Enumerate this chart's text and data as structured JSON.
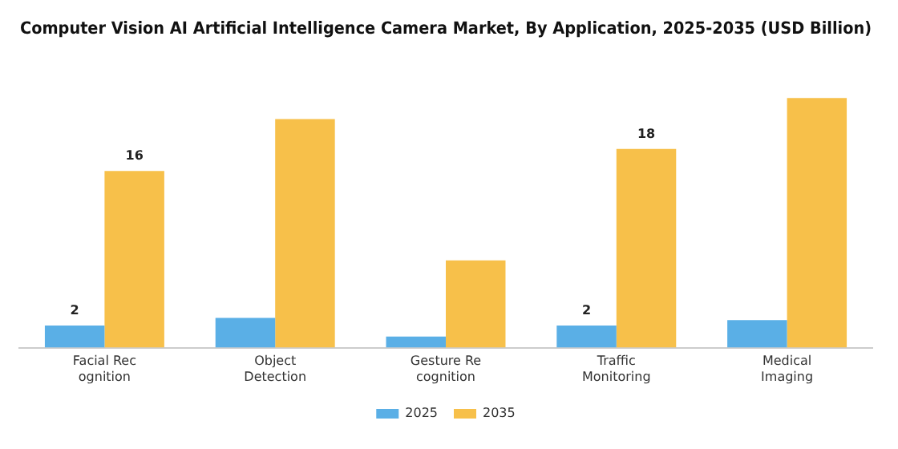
{
  "chart_data": {
    "type": "bar",
    "title": "Computer Vision AI Artificial Intelligence Camera Market, By Application, 2025-2035 (USD Billion)",
    "categories": [
      "Facial Rec\nognition",
      "Object\nDetection",
      "Gesture Re\ncognition",
      "Traffic\nMonitoring",
      "Medical\nImaging"
    ],
    "series": [
      {
        "name": "2025",
        "color": "#5aafe6",
        "values": [
          2,
          2.7,
          1,
          2,
          2.5
        ],
        "value_labels": [
          "2",
          null,
          null,
          "2",
          null
        ]
      },
      {
        "name": "2035",
        "color": "#f7c04a",
        "values": [
          16,
          20.7,
          7.9,
          18,
          22.6
        ],
        "value_labels": [
          "16",
          null,
          null,
          "18",
          null
        ]
      }
    ],
    "legend": "bottom",
    "grid": false
  }
}
